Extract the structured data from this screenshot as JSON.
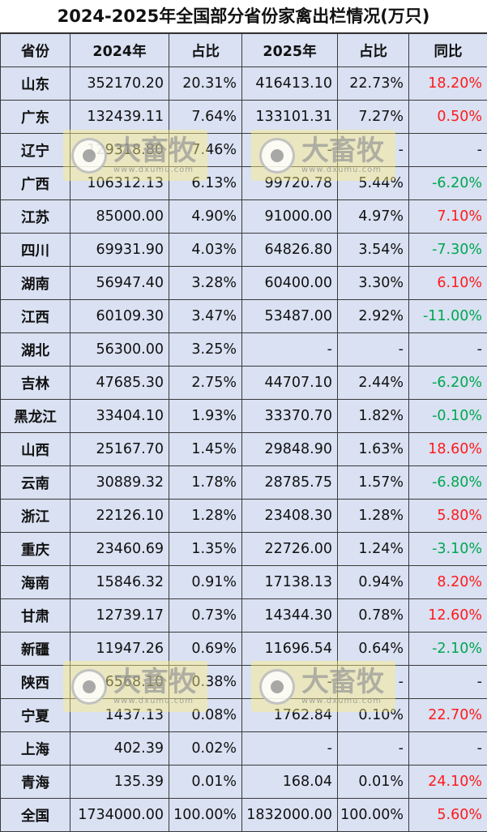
{
  "title": "2024-2025年全国部分省份家禽出栏情况(万只)",
  "headers": [
    "省份",
    "2024年",
    "占比",
    "2025年",
    "占比",
    "同比"
  ],
  "rows": [
    {
      "province": "山东",
      "v2024": "352170.20",
      "share2024": "20.31%",
      "v2025": "416413.10",
      "share2025": "22.73%",
      "yoy": "18.20%",
      "trend": "pos"
    },
    {
      "province": "广东",
      "v2024": "132439.11",
      "share2024": "7.64%",
      "v2025": "133101.31",
      "share2025": "7.27%",
      "yoy": "0.50%",
      "trend": "pos"
    },
    {
      "province": "辽宁",
      "v2024": "129318.80",
      "share2024": "7.46%",
      "v2025": "-",
      "share2025": "-",
      "yoy": "-",
      "trend": "none"
    },
    {
      "province": "广西",
      "v2024": "106312.13",
      "share2024": "6.13%",
      "v2025": "99720.78",
      "share2025": "5.44%",
      "yoy": "-6.20%",
      "trend": "neg"
    },
    {
      "province": "江苏",
      "v2024": "85000.00",
      "share2024": "4.90%",
      "v2025": "91000.00",
      "share2025": "4.97%",
      "yoy": "7.10%",
      "trend": "pos"
    },
    {
      "province": "四川",
      "v2024": "69931.90",
      "share2024": "4.03%",
      "v2025": "64826.80",
      "share2025": "3.54%",
      "yoy": "-7.30%",
      "trend": "neg"
    },
    {
      "province": "湖南",
      "v2024": "56947.40",
      "share2024": "3.28%",
      "v2025": "60400.00",
      "share2025": "3.30%",
      "yoy": "6.10%",
      "trend": "pos"
    },
    {
      "province": "江西",
      "v2024": "60109.30",
      "share2024": "3.47%",
      "v2025": "53487.00",
      "share2025": "2.92%",
      "yoy": "-11.00%",
      "trend": "neg"
    },
    {
      "province": "湖北",
      "v2024": "56300.00",
      "share2024": "3.25%",
      "v2025": "-",
      "share2025": "-",
      "yoy": "-",
      "trend": "none"
    },
    {
      "province": "吉林",
      "v2024": "47685.30",
      "share2024": "2.75%",
      "v2025": "44707.10",
      "share2025": "2.44%",
      "yoy": "-6.20%",
      "trend": "neg"
    },
    {
      "province": "黑龙江",
      "v2024": "33404.10",
      "share2024": "1.93%",
      "v2025": "33370.70",
      "share2025": "1.82%",
      "yoy": "-0.10%",
      "trend": "neg"
    },
    {
      "province": "山西",
      "v2024": "25167.70",
      "share2024": "1.45%",
      "v2025": "29848.90",
      "share2025": "1.63%",
      "yoy": "18.60%",
      "trend": "pos"
    },
    {
      "province": "云南",
      "v2024": "30889.32",
      "share2024": "1.78%",
      "v2025": "28785.75",
      "share2025": "1.57%",
      "yoy": "-6.80%",
      "trend": "neg"
    },
    {
      "province": "浙江",
      "v2024": "22126.10",
      "share2024": "1.28%",
      "v2025": "23408.30",
      "share2025": "1.28%",
      "yoy": "5.80%",
      "trend": "pos"
    },
    {
      "province": "重庆",
      "v2024": "23460.69",
      "share2024": "1.35%",
      "v2025": "22726.00",
      "share2025": "1.24%",
      "yoy": "-3.10%",
      "trend": "neg"
    },
    {
      "province": "海南",
      "v2024": "15846.32",
      "share2024": "0.91%",
      "v2025": "17138.13",
      "share2025": "0.94%",
      "yoy": "8.20%",
      "trend": "pos"
    },
    {
      "province": "甘肃",
      "v2024": "12739.17",
      "share2024": "0.73%",
      "v2025": "14344.30",
      "share2025": "0.78%",
      "yoy": "12.60%",
      "trend": "pos"
    },
    {
      "province": "新疆",
      "v2024": "11947.26",
      "share2024": "0.69%",
      "v2025": "11696.54",
      "share2025": "0.64%",
      "yoy": "-2.10%",
      "trend": "neg"
    },
    {
      "province": "陕西",
      "v2024": "6568.10",
      "share2024": "0.38%",
      "v2025": "-",
      "share2025": "-",
      "yoy": "-",
      "trend": "none"
    },
    {
      "province": "宁夏",
      "v2024": "1437.13",
      "share2024": "0.08%",
      "v2025": "1762.84",
      "share2025": "0.10%",
      "yoy": "22.70%",
      "trend": "pos"
    },
    {
      "province": "上海",
      "v2024": "402.39",
      "share2024": "0.02%",
      "v2025": "-",
      "share2025": "-",
      "yoy": "-",
      "trend": "none"
    },
    {
      "province": "青海",
      "v2024": "135.39",
      "share2024": "0.01%",
      "v2025": "168.04",
      "share2025": "0.01%",
      "yoy": "24.10%",
      "trend": "pos"
    },
    {
      "province": "全国",
      "v2024": "1734000.00",
      "share2024": "100.00%",
      "v2025": "1832000.00",
      "share2025": "100.00%",
      "yoy": "5.60%",
      "trend": "pos"
    }
  ],
  "watermark": {
    "brand": "大畜牧",
    "url": "www.dxumu.com",
    "icon": "logo-icon"
  },
  "colors": {
    "header_bg": "#d9e1f2",
    "row_bg": "#d9e1f2",
    "positive": "#ff1a1a",
    "negative": "#00a650"
  }
}
